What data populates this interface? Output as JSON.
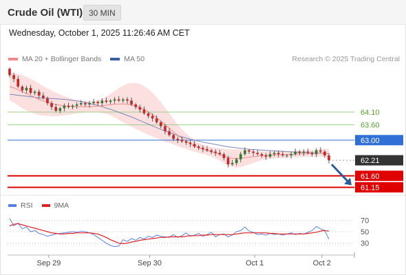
{
  "header": {
    "title": "Crude Oil (WTI)",
    "interval": "30 MIN"
  },
  "timestamp": "Wednesday, October 1, 2025 11:26:46 AM CET",
  "legend": {
    "ma20_label": "MA 20 + Bollinger Bands",
    "ma50_label": "MA 50",
    "credit": "Research © 2025 Trading Central"
  },
  "rsi_legend": {
    "rsi_label": "RSI",
    "ma_label": "9MA"
  },
  "colors": {
    "candle_up": "#2e7d32",
    "candle_down": "#c62828",
    "bollinger_fill": "#fbd6d6",
    "ma20": "#f08a8a",
    "ma50": "#7a87b8",
    "resistance": "#9ccf8a",
    "resistance_text": "#5a9e32",
    "pivot": "#2f6fd6",
    "support": "#e00000",
    "current": "#333333",
    "rsi": "#5b7fe0",
    "rsi_ma": "#e02020",
    "arrow": "#2b5a9e"
  },
  "chart_data": [
    {
      "type": "candlestick",
      "title": "Crude Oil (WTI)",
      "interval": "30 MIN",
      "x_tick_labels": [
        "Sep 29",
        "Sep 30",
        "Oct 1",
        "Oct 2"
      ],
      "y_range": [
        61.0,
        65.8
      ],
      "levels": [
        {
          "value": 64.1,
          "label": "64.10",
          "kind": "resistance"
        },
        {
          "value": 63.6,
          "label": "63.60",
          "kind": "resistance"
        },
        {
          "value": 63.0,
          "label": "63.00",
          "kind": "pivot"
        },
        {
          "value": 62.21,
          "label": "62.21",
          "kind": "current"
        },
        {
          "value": 61.6,
          "label": "61.60",
          "kind": "support"
        },
        {
          "value": 61.15,
          "label": "61.15",
          "kind": "support"
        }
      ],
      "close": [
        65.55,
        65.4,
        65.1,
        64.95,
        65.05,
        64.85,
        64.9,
        64.75,
        64.65,
        64.45,
        64.3,
        64.15,
        64.25,
        64.35,
        64.3,
        64.35,
        64.4,
        64.45,
        64.4,
        64.45,
        64.5,
        64.45,
        64.55,
        64.5,
        64.55,
        64.6,
        64.55,
        64.6,
        64.55,
        64.4,
        64.3,
        64.2,
        64.05,
        63.95,
        63.85,
        63.7,
        63.55,
        63.35,
        63.2,
        63.05,
        63.0,
        62.95,
        62.9,
        62.85,
        62.75,
        62.7,
        62.65,
        62.6,
        62.55,
        62.5,
        62.45,
        62.3,
        62.05,
        62.1,
        62.25,
        62.45,
        62.6,
        62.55,
        62.5,
        62.45,
        62.4,
        62.35,
        62.45,
        62.5,
        62.45,
        62.4,
        62.4,
        62.45,
        62.55,
        62.5,
        62.55,
        62.5,
        62.45,
        62.6,
        62.55,
        62.4,
        62.21
      ],
      "ma20": [
        65.1,
        65.05,
        64.98,
        64.9,
        64.82,
        64.75,
        64.68,
        64.6,
        64.54,
        64.49,
        64.44,
        64.4,
        64.37,
        64.35,
        64.33,
        64.32,
        64.31,
        64.31,
        64.31,
        64.31,
        64.32,
        64.33,
        64.35,
        64.37,
        64.39,
        64.41,
        64.42,
        64.42,
        64.41,
        64.38,
        64.34,
        64.28,
        64.2,
        64.11,
        64.0,
        63.88,
        63.75,
        63.61,
        63.47,
        63.33,
        63.19,
        63.07,
        62.96,
        62.86,
        62.77,
        62.7,
        62.64,
        62.59,
        62.54,
        62.49,
        62.44,
        62.38,
        62.32,
        62.29,
        62.28,
        62.29,
        62.31,
        62.33,
        62.35,
        62.37,
        62.39,
        62.4,
        62.41,
        62.42,
        62.43,
        62.43,
        62.44,
        62.44,
        62.45,
        62.46,
        62.47,
        62.48,
        62.48,
        62.49,
        62.5,
        62.49,
        62.46
      ],
      "ma50": [
        64.8,
        64.78,
        64.76,
        64.74,
        64.72,
        64.7,
        64.68,
        64.66,
        64.65,
        64.64,
        64.63,
        64.62,
        64.61,
        64.6,
        64.58,
        64.56,
        64.54,
        64.51,
        64.48,
        64.44,
        64.4,
        64.36,
        64.31,
        64.26,
        64.21,
        64.15,
        64.09,
        64.03,
        63.97,
        63.91,
        63.84,
        63.77,
        63.7,
        63.63,
        63.56,
        63.49,
        63.42,
        63.36,
        63.3,
        63.24,
        63.18,
        63.13,
        63.08,
        63.04,
        63.0,
        62.96,
        62.92,
        62.89,
        62.86,
        62.83,
        62.8,
        62.77,
        62.74,
        62.72,
        62.7,
        62.68,
        62.66,
        62.64,
        62.63,
        62.62,
        62.61,
        62.6,
        62.59,
        62.58,
        62.57,
        62.56,
        62.55,
        62.54,
        62.53,
        62.52,
        62.52,
        62.51,
        62.5,
        62.5,
        62.49,
        62.48,
        62.47
      ],
      "bb_width": [
        0.55,
        0.58,
        0.62,
        0.65,
        0.66,
        0.66,
        0.64,
        0.62,
        0.58,
        0.54,
        0.5,
        0.46,
        0.42,
        0.38,
        0.34,
        0.3,
        0.26,
        0.24,
        0.22,
        0.22,
        0.22,
        0.24,
        0.28,
        0.34,
        0.42,
        0.52,
        0.62,
        0.72,
        0.8,
        0.86,
        0.9,
        0.92,
        0.92,
        0.9,
        0.86,
        0.8,
        0.74,
        0.66,
        0.58,
        0.5,
        0.42,
        0.36,
        0.3,
        0.26,
        0.22,
        0.2,
        0.18,
        0.18,
        0.19,
        0.21,
        0.24,
        0.28,
        0.32,
        0.35,
        0.36,
        0.35,
        0.32,
        0.28,
        0.24,
        0.2,
        0.18,
        0.16,
        0.15,
        0.14,
        0.14,
        0.14,
        0.13,
        0.13,
        0.13,
        0.13,
        0.13,
        0.13,
        0.13,
        0.14,
        0.15,
        0.17,
        0.2
      ],
      "forecast_arrow": {
        "from": 62.21,
        "to": 61.15
      }
    },
    {
      "type": "line",
      "title": "RSI",
      "y_range": [
        20,
        80
      ],
      "y_tick_labels": [
        "70",
        "50",
        "30"
      ],
      "series": [
        {
          "name": "RSI",
          "values": [
            73,
            60,
            65,
            55,
            58,
            50,
            52,
            47,
            45,
            42,
            44,
            46,
            47,
            48,
            49,
            50,
            49,
            51,
            50,
            48,
            45,
            40,
            35,
            30,
            26,
            24,
            25,
            36,
            33,
            38,
            35,
            40,
            37,
            42,
            40,
            44,
            42,
            41,
            40,
            45,
            40,
            43,
            48,
            42,
            44,
            47,
            42,
            45,
            49,
            41,
            45,
            46,
            41,
            44,
            50,
            52,
            58,
            51,
            49,
            45,
            46,
            44,
            47,
            45,
            46,
            44,
            46,
            48,
            45,
            47,
            46,
            49,
            52,
            59,
            55,
            52,
            37
          ]
        },
        {
          "name": "9MA",
          "values": [
            60,
            63,
            64,
            62,
            60,
            58,
            56,
            54,
            52,
            50,
            48,
            47,
            46,
            46,
            47,
            47,
            48,
            48,
            48,
            48,
            47,
            46,
            43,
            40,
            36,
            33,
            30,
            29,
            30,
            32,
            33,
            35,
            36,
            37,
            38,
            39,
            40,
            40,
            41,
            41,
            41,
            41,
            42,
            43,
            43,
            43,
            44,
            44,
            45,
            45,
            45,
            45,
            45,
            45,
            46,
            47,
            48,
            48,
            48,
            48,
            48,
            48,
            47,
            47,
            46,
            46,
            46,
            46,
            46,
            46,
            46,
            47,
            48,
            49,
            51,
            52,
            51
          ]
        }
      ]
    }
  ]
}
